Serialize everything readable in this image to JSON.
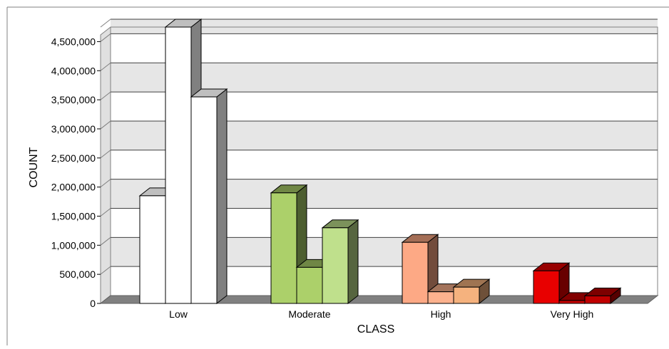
{
  "chart_data": {
    "type": "bar",
    "title": "",
    "xlabel": "CLASS",
    "ylabel": "COUNT",
    "categories": [
      "Low",
      "Moderate",
      "High",
      "Very High"
    ],
    "ylim": [
      0,
      4750000
    ],
    "yticks": [
      0,
      500000,
      1000000,
      1500000,
      2000000,
      2500000,
      3000000,
      3500000,
      4000000,
      4500000
    ],
    "ytick_labels": [
      "0",
      "500,000",
      "1,000,000",
      "1,500,000",
      "2,000,000",
      "2,500,000",
      "3,000,000",
      "3,500,000",
      "4,000,000",
      "4,500,000"
    ],
    "grid": true,
    "legend": false,
    "values": [
      [
        1850000,
        4750000,
        3550000
      ],
      [
        1900000,
        620000,
        1300000
      ],
      [
        1050000,
        200000,
        280000
      ],
      [
        560000,
        50000,
        130000
      ]
    ],
    "colors": [
      [
        "#ffffff",
        "#ffffff",
        "#ffffff"
      ],
      [
        "#acd06a",
        "#acd06a",
        "#bfe08c"
      ],
      [
        "#fda985",
        "#fdb28e",
        "#f5b27e"
      ],
      [
        "#e80000",
        "#c80000",
        "#c00000"
      ]
    ]
  }
}
